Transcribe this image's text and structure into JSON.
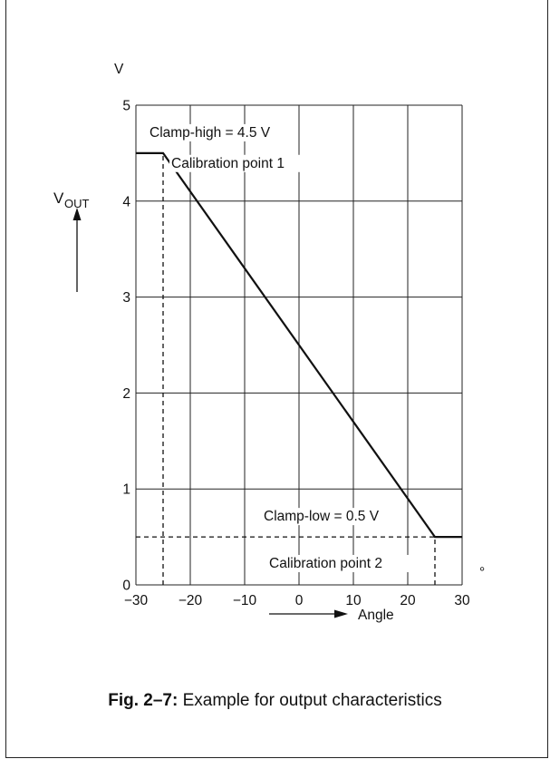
{
  "chart_data": {
    "type": "line",
    "xlim": [
      -30,
      30
    ],
    "ylim": [
      0,
      5
    ],
    "x_ticks": [
      -30,
      -20,
      -10,
      0,
      10,
      20,
      30
    ],
    "x_tick_labels": [
      "−30",
      "−20",
      "−10",
      "0",
      "10",
      "20",
      "30"
    ],
    "x_unit": "°",
    "y_ticks": [
      0,
      1,
      2,
      3,
      4,
      5
    ],
    "y_tick_labels": [
      "0",
      "1",
      "2",
      "3",
      "4",
      "5"
    ],
    "y_unit": "V",
    "ylabel_main": "V",
    "ylabel_sub": "OUT",
    "xlabel": "Angle",
    "grid": true,
    "series": [
      {
        "x": [
          -30,
          -25,
          25,
          30
        ],
        "y": [
          4.5,
          4.5,
          0.5,
          0.5
        ]
      }
    ],
    "reference_lines": [
      {
        "type": "vertical",
        "x": -25,
        "from_y": 0,
        "to_y": 4.5,
        "style": "dashed"
      },
      {
        "type": "vertical",
        "x": 25,
        "from_y": 0,
        "to_y": 0.5,
        "style": "dashed"
      },
      {
        "type": "horizontal",
        "y": 0.5,
        "from_x": -30,
        "to_x": 25,
        "style": "dashed"
      }
    ],
    "annotations": [
      {
        "text": "Clamp-high = 4.5 V",
        "x": -27.5,
        "y": 4.67
      },
      {
        "text": "Calibration point 1",
        "x": -23.5,
        "y": 4.35
      },
      {
        "text": "Clamp-low = 0.5 V",
        "x": -6.5,
        "y": 0.67
      },
      {
        "text": "Calibration point 2",
        "x": -5.5,
        "y": 0.18
      }
    ]
  },
  "caption": {
    "label": "Fig. 2–7:",
    "text": " Example for output characteristics"
  }
}
